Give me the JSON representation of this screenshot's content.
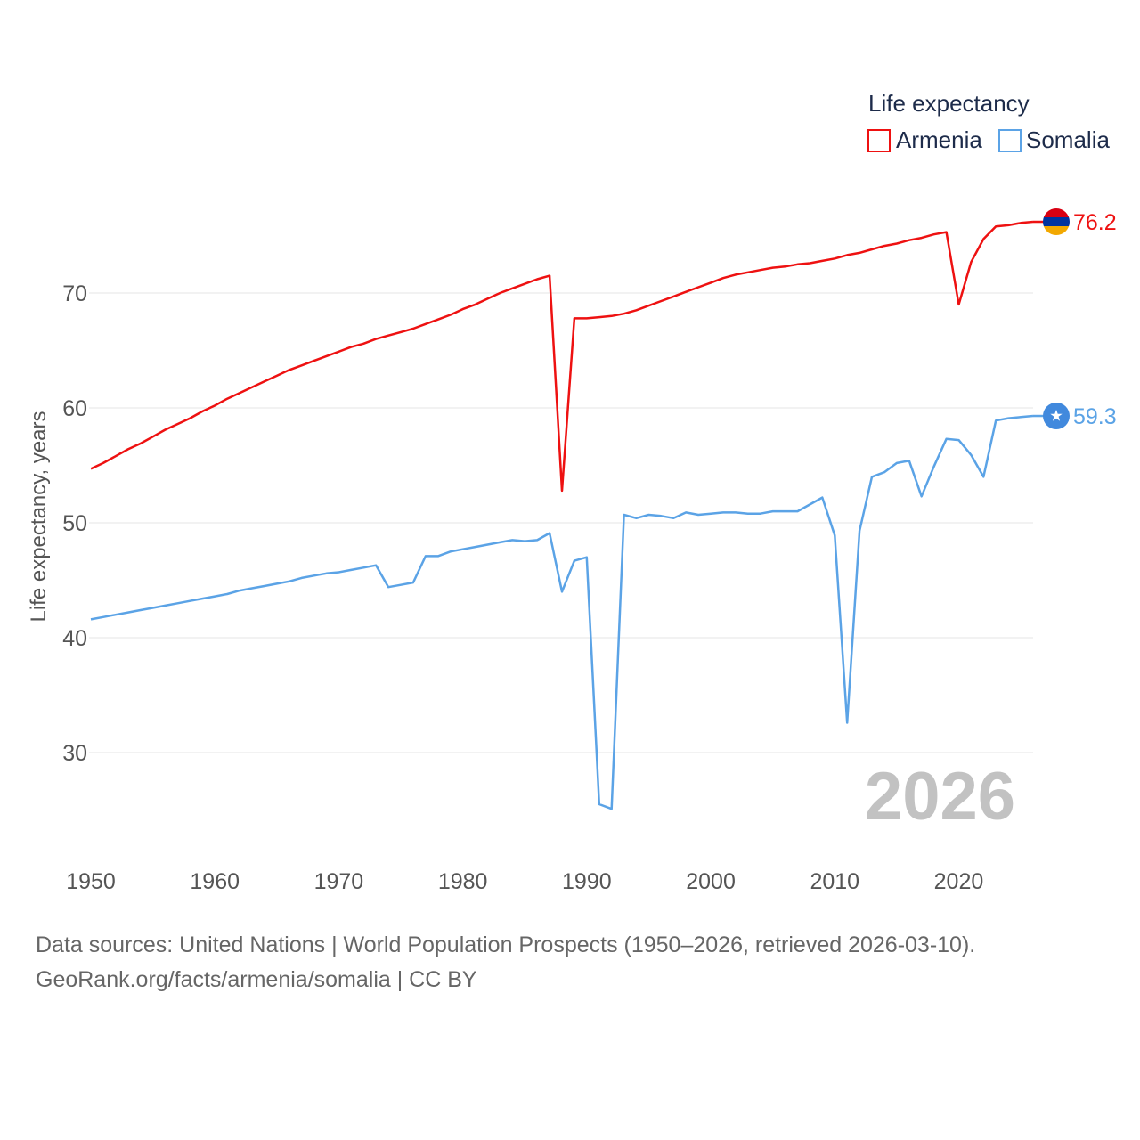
{
  "chart_data": {
    "type": "line",
    "ylabel": "Life expectancy, years",
    "xlabel": "",
    "xlim": [
      1950,
      2026
    ],
    "ylim": [
      21,
      80
    ],
    "xticks": [
      1950,
      1960,
      1970,
      1980,
      1990,
      2000,
      2010,
      2020
    ],
    "yticks": [
      30,
      40,
      50,
      60,
      70
    ],
    "grid": true,
    "legend": {
      "title": "Life expectancy",
      "position": "top-right"
    },
    "current_year_label": "2026",
    "x": [
      1950,
      1951,
      1952,
      1953,
      1954,
      1955,
      1956,
      1957,
      1958,
      1959,
      1960,
      1961,
      1962,
      1963,
      1964,
      1965,
      1966,
      1967,
      1968,
      1969,
      1970,
      1971,
      1972,
      1973,
      1974,
      1975,
      1976,
      1977,
      1978,
      1979,
      1980,
      1981,
      1982,
      1983,
      1984,
      1985,
      1986,
      1987,
      1988,
      1989,
      1990,
      1991,
      1992,
      1993,
      1994,
      1995,
      1996,
      1997,
      1998,
      1999,
      2000,
      2001,
      2002,
      2003,
      2004,
      2005,
      2006,
      2007,
      2008,
      2009,
      2010,
      2011,
      2012,
      2013,
      2014,
      2015,
      2016,
      2017,
      2018,
      2019,
      2020,
      2021,
      2022,
      2023,
      2024,
      2025,
      2026
    ],
    "series": [
      {
        "name": "Armenia",
        "color": "#ee1111",
        "end_label": "76.2",
        "marker": "armenia-flag",
        "values": [
          54.7,
          55.2,
          55.8,
          56.4,
          56.9,
          57.5,
          58.1,
          58.6,
          59.1,
          59.7,
          60.2,
          60.8,
          61.3,
          61.8,
          62.3,
          62.8,
          63.3,
          63.7,
          64.1,
          64.5,
          64.9,
          65.3,
          65.6,
          66.0,
          66.3,
          66.6,
          66.9,
          67.3,
          67.7,
          68.1,
          68.6,
          69.0,
          69.5,
          70.0,
          70.4,
          70.8,
          71.2,
          71.5,
          52.8,
          67.8,
          67.8,
          67.9,
          68.0,
          68.2,
          68.5,
          68.9,
          69.3,
          69.7,
          70.1,
          70.5,
          70.9,
          71.3,
          71.6,
          71.8,
          72.0,
          72.2,
          72.3,
          72.5,
          72.6,
          72.8,
          73.0,
          73.3,
          73.5,
          73.8,
          74.1,
          74.3,
          74.6,
          74.8,
          75.1,
          75.3,
          69.0,
          72.7,
          74.7,
          75.8,
          75.9,
          76.1,
          76.2
        ]
      },
      {
        "name": "Somalia",
        "color": "#5ba3e6",
        "end_label": "59.3",
        "marker": "somalia-flag",
        "values": [
          41.6,
          41.8,
          42.0,
          42.2,
          42.4,
          42.6,
          42.8,
          43.0,
          43.2,
          43.4,
          43.6,
          43.8,
          44.1,
          44.3,
          44.5,
          44.7,
          44.9,
          45.2,
          45.4,
          45.6,
          45.7,
          45.9,
          46.1,
          46.3,
          44.4,
          44.6,
          44.8,
          47.1,
          47.1,
          47.5,
          47.7,
          47.9,
          48.1,
          48.3,
          48.5,
          48.4,
          48.5,
          49.1,
          44.0,
          46.7,
          47.0,
          25.5,
          25.1,
          50.7,
          50.4,
          50.7,
          50.6,
          50.4,
          50.9,
          50.7,
          50.8,
          50.9,
          50.9,
          50.8,
          50.8,
          51.0,
          51.0,
          51.0,
          51.6,
          52.2,
          48.9,
          32.6,
          49.3,
          54.0,
          54.4,
          55.2,
          55.4,
          52.3,
          54.9,
          57.3,
          57.2,
          55.9,
          54.0,
          58.9,
          59.1,
          59.2,
          59.3
        ]
      }
    ]
  },
  "footer": {
    "source_line": "Data sources: United Nations | World Population Prospects (1950–2026, retrieved 2026-03-10).",
    "credit_line": "GeoRank.org/facts/armenia/somalia | CC BY"
  }
}
